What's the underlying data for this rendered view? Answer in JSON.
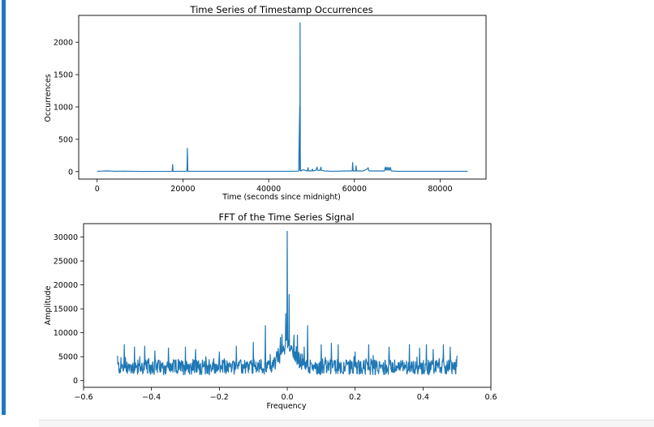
{
  "colors": {
    "cell_accent": "#1f77c4",
    "series": "#1f77b4"
  },
  "chart_data": [
    {
      "type": "line",
      "title": "Time Series of Timestamp Occurrences",
      "xlabel": "Time (seconds since midnight)",
      "ylabel": "Occurrences",
      "xlim": [
        -4300,
        90700
      ],
      "ylim": [
        -115,
        2415
      ],
      "xticks": [
        0,
        20000,
        40000,
        60000,
        80000
      ],
      "yticks": [
        0,
        500,
        1000,
        1500,
        2000
      ],
      "x": [
        0,
        2500,
        4000,
        6000,
        10000,
        17500,
        17600,
        17700,
        20500,
        20950,
        21050,
        21150,
        25000,
        30000,
        35000,
        40000,
        45000,
        47000,
        47250,
        47280,
        47330,
        47380,
        47420,
        47470,
        47520,
        47600,
        48000,
        49000,
        49200,
        49300,
        50000,
        50200,
        50300,
        51000,
        51300,
        51400,
        52000,
        52200,
        52300,
        53000,
        55000,
        58000,
        59500,
        59600,
        59700,
        60300,
        60400,
        60500,
        62000,
        63000,
        63200,
        63400,
        64000,
        65000,
        67000,
        67200,
        67400,
        67600,
        67800,
        68000,
        68200,
        68400,
        68600,
        70000,
        75000,
        80000,
        86400
      ],
      "y": [
        5,
        12,
        5,
        8,
        3,
        5,
        110,
        5,
        5,
        10,
        360,
        5,
        5,
        5,
        5,
        5,
        5,
        8,
        1000,
        20,
        2300,
        300,
        30,
        20,
        5,
        15,
        30,
        10,
        60,
        10,
        10,
        40,
        10,
        20,
        70,
        20,
        20,
        70,
        20,
        10,
        5,
        10,
        10,
        140,
        10,
        10,
        90,
        10,
        10,
        40,
        60,
        10,
        10,
        10,
        10,
        70,
        20,
        70,
        20,
        65,
        20,
        65,
        10,
        5,
        5,
        5,
        5
      ]
    },
    {
      "type": "line",
      "title": "FFT of the Time Series Signal",
      "xlabel": "Frequency",
      "ylabel": "Amplitude",
      "xlim": [
        -0.6,
        0.6
      ],
      "ylim": [
        -1400,
        32800
      ],
      "xticks": [
        -0.6,
        -0.4,
        -0.2,
        0.0,
        0.2,
        0.4,
        0.6
      ],
      "xtick_labels": [
        "−0.6",
        "−0.4",
        "−0.2",
        "0.0",
        "0.2",
        "0.4",
        "0.6"
      ],
      "yticks": [
        0,
        5000,
        10000,
        15000,
        20000,
        25000,
        30000
      ],
      "x_range": [
        -0.5,
        0.5
      ],
      "baseline": 2800,
      "spikes": [
        {
          "x": -0.5,
          "y": 5200
        },
        {
          "x": -0.49,
          "y": 4800
        },
        {
          "x": -0.48,
          "y": 7500
        },
        {
          "x": -0.45,
          "y": 7000
        },
        {
          "x": -0.42,
          "y": 7200
        },
        {
          "x": -0.39,
          "y": 6200
        },
        {
          "x": -0.35,
          "y": 6800
        },
        {
          "x": -0.3,
          "y": 7000
        },
        {
          "x": -0.27,
          "y": 6500
        },
        {
          "x": -0.2,
          "y": 6000
        },
        {
          "x": -0.15,
          "y": 7200
        },
        {
          "x": -0.1,
          "y": 8000
        },
        {
          "x": -0.065,
          "y": 11500
        },
        {
          "x": -0.02,
          "y": 9000
        },
        {
          "x": -0.005,
          "y": 14000
        },
        {
          "x": 0.0,
          "y": 31200
        },
        {
          "x": 0.005,
          "y": 18000
        },
        {
          "x": 0.02,
          "y": 9500
        },
        {
          "x": 0.03,
          "y": 9500
        },
        {
          "x": 0.05,
          "y": 7000
        },
        {
          "x": 0.06,
          "y": 11500
        },
        {
          "x": 0.1,
          "y": 7500
        },
        {
          "x": 0.13,
          "y": 7800
        },
        {
          "x": 0.15,
          "y": 7500
        },
        {
          "x": 0.2,
          "y": 6000
        },
        {
          "x": 0.24,
          "y": 7500
        },
        {
          "x": 0.3,
          "y": 7000
        },
        {
          "x": 0.36,
          "y": 7500
        },
        {
          "x": 0.39,
          "y": 6800
        },
        {
          "x": 0.41,
          "y": 7500
        },
        {
          "x": 0.43,
          "y": 6500
        },
        {
          "x": 0.46,
          "y": 7500
        },
        {
          "x": 0.48,
          "y": 7000
        },
        {
          "x": 0.5,
          "y": 5200
        }
      ]
    }
  ]
}
